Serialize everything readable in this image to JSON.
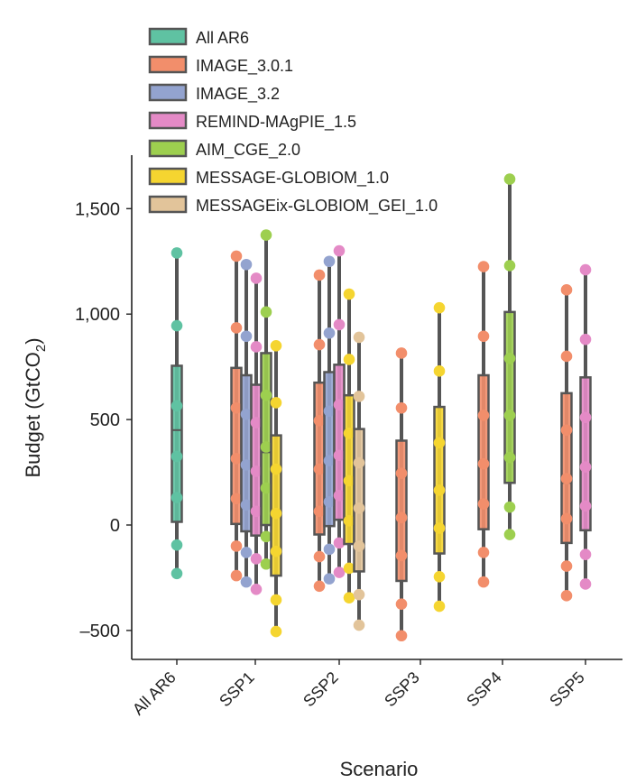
{
  "chart_data": {
    "type": "box",
    "xlabel": "Scenario",
    "ylabel": "Budget (GtCO",
    "ylabel_sub": "2",
    "ylabel_close": ")",
    "ylim": [
      -640,
      1750
    ],
    "yticks": [
      -500,
      0,
      500,
      1000,
      1500
    ],
    "ytick_labels": [
      "–500",
      "0",
      "500",
      "1,000",
      "1,500"
    ],
    "categories": [
      "All AR6",
      "SSP1",
      "SSP2",
      "SSP3",
      "SSP4",
      "SSP5"
    ],
    "legend_position": "top-left",
    "series": [
      {
        "name": "All AR6",
        "color": "#5FC2A2",
        "boxes": [
          {
            "category": "All AR6",
            "min": -230,
            "q1": 15,
            "median": 450,
            "q3": 755,
            "max": 1290,
            "points": [
              -230,
              -95,
              130,
              325,
              565,
              945,
              1290
            ]
          }
        ]
      },
      {
        "name": "IMAGE_3.0.1",
        "color": "#F28E6B",
        "boxes": [
          {
            "category": "SSP1",
            "min": -240,
            "q1": 5,
            "median": 300,
            "q3": 745,
            "max": 1275,
            "points": [
              -240,
              -100,
              125,
              315,
              555,
              935,
              1275
            ]
          },
          {
            "category": "SSP2",
            "min": -290,
            "q1": -45,
            "median": 250,
            "q3": 675,
            "max": 1185,
            "points": [
              -290,
              -150,
              65,
              265,
              495,
              855,
              1185
            ]
          },
          {
            "category": "SSP3",
            "min": -525,
            "q1": -265,
            "median": 30,
            "q3": 400,
            "max": 815,
            "points": [
              -525,
              -375,
              -145,
              35,
              245,
              555,
              815
            ]
          },
          {
            "category": "SSP4",
            "min": -270,
            "q1": -20,
            "median": 280,
            "q3": 710,
            "max": 1225,
            "points": [
              -270,
              -130,
              100,
              290,
              520,
              895,
              1225
            ]
          },
          {
            "category": "SSP5",
            "min": -335,
            "q1": -85,
            "median": 200,
            "q3": 625,
            "max": 1115,
            "points": [
              -335,
              -195,
              30,
              220,
              450,
              800,
              1115
            ]
          }
        ]
      },
      {
        "name": "IMAGE_3.2",
        "color": "#93A3CF",
        "boxes": [
          {
            "category": "SSP1",
            "min": -270,
            "q1": -30,
            "median": 285,
            "q3": 710,
            "max": 1235,
            "points": [
              -270,
              -130,
              95,
              285,
              525,
              895,
              1235
            ]
          },
          {
            "category": "SSP2",
            "min": -255,
            "q1": -5,
            "median": 300,
            "q3": 725,
            "max": 1250,
            "points": [
              -255,
              -115,
              110,
              305,
              540,
              910,
              1250
            ]
          }
        ]
      },
      {
        "name": "REMIND-MAgPIE_1.5",
        "color": "#E48AC6",
        "boxes": [
          {
            "category": "SSP1",
            "min": -305,
            "q1": -50,
            "median": 250,
            "q3": 665,
            "max": 1170,
            "points": [
              -305,
              -160,
              65,
              255,
              485,
              845,
              1170
            ]
          },
          {
            "category": "SSP2",
            "min": -225,
            "q1": 25,
            "median": 335,
            "q3": 760,
            "max": 1300,
            "points": [
              -225,
              -85,
              140,
              330,
              570,
              950,
              1300
            ]
          },
          {
            "category": "SSP5",
            "min": -280,
            "q1": -25,
            "median": 270,
            "q3": 700,
            "max": 1210,
            "points": [
              -280,
              -140,
              90,
              275,
              510,
              880,
              1210
            ]
          }
        ]
      },
      {
        "name": "AIM_CGE_2.0",
        "color": "#9DCF4F",
        "boxes": [
          {
            "category": "SSP1",
            "min": -185,
            "q1": 0,
            "median": 345,
            "q3": 815,
            "max": 1375,
            "points": [
              -185,
              -55,
              175,
              370,
              615,
              1010,
              1375
            ]
          },
          {
            "category": "SSP4",
            "min": -45,
            "q1": 200,
            "median": 520,
            "q3": 1010,
            "max": 1640,
            "points": [
              -45,
              85,
              320,
              520,
              790,
              1230,
              1640
            ]
          }
        ]
      },
      {
        "name": "MESSAGE-GLOBIOM_1.0",
        "color": "#F5D530",
        "boxes": [
          {
            "category": "SSP1",
            "min": -505,
            "q1": -240,
            "median": 60,
            "q3": 425,
            "max": 850,
            "points": [
              -505,
              -355,
              -125,
              55,
              265,
              580,
              850
            ]
          },
          {
            "category": "SSP2",
            "min": -345,
            "q1": -90,
            "median": 200,
            "q3": 615,
            "max": 1095,
            "points": [
              -345,
              -205,
              20,
              210,
              435,
              785,
              1095
            ]
          },
          {
            "category": "SSP3",
            "min": -385,
            "q1": -135,
            "median": 160,
            "q3": 560,
            "max": 1030,
            "points": [
              -385,
              -245,
              -15,
              165,
              390,
              730,
              1030
            ]
          }
        ]
      },
      {
        "name": "MESSAGEix-GLOBIOM_GEI_1.0",
        "color": "#E2C49A",
        "boxes": [
          {
            "category": "SSP2",
            "min": -475,
            "q1": -220,
            "median": 75,
            "q3": 455,
            "max": 890,
            "points": [
              -475,
              -330,
              -100,
              80,
              295,
              610,
              890
            ]
          }
        ]
      }
    ]
  }
}
